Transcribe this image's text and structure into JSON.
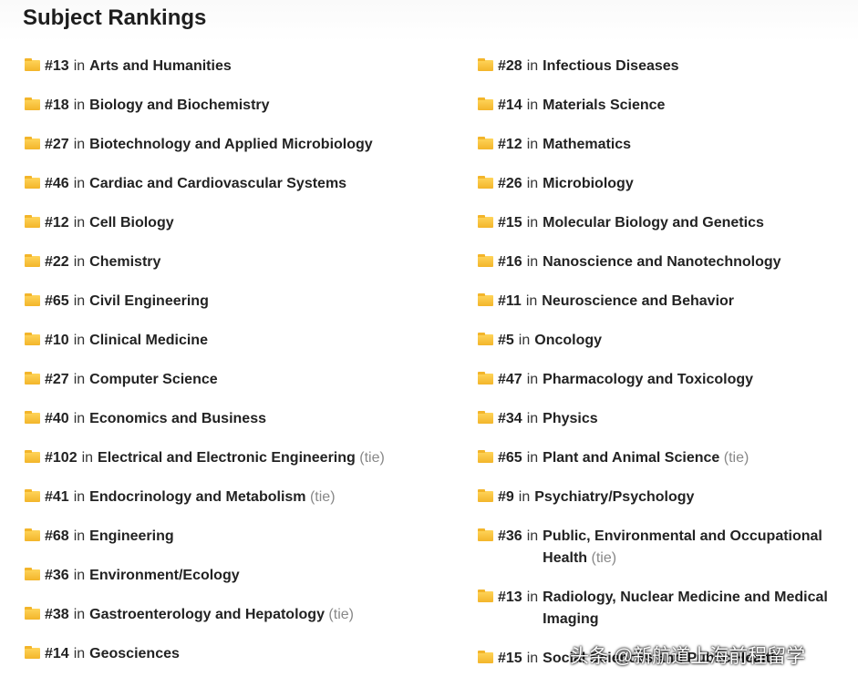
{
  "header": {
    "title": "Subject Rankings"
  },
  "columns": [
    {
      "items": [
        {
          "rank": "#13",
          "in": "in",
          "subject": "Arts and Humanities"
        },
        {
          "rank": "#18",
          "in": "in",
          "subject": "Biology and Biochemistry"
        },
        {
          "rank": "#27",
          "in": "in",
          "subject": "Biotechnology and Applied Microbiology"
        },
        {
          "rank": "#46",
          "in": "in",
          "subject": "Cardiac and Cardiovascular Systems"
        },
        {
          "rank": "#12",
          "in": "in",
          "subject": "Cell Biology"
        },
        {
          "rank": "#22",
          "in": "in",
          "subject": "Chemistry"
        },
        {
          "rank": "#65",
          "in": "in",
          "subject": "Civil Engineering"
        },
        {
          "rank": "#10",
          "in": "in",
          "subject": "Clinical Medicine"
        },
        {
          "rank": "#27",
          "in": "in",
          "subject": "Computer Science"
        },
        {
          "rank": "#40",
          "in": "in",
          "subject": "Economics and Business"
        },
        {
          "rank": "#102",
          "in": "in",
          "subject": "Electrical and Electronic Engineering",
          "tie": "(tie)"
        },
        {
          "rank": "#41",
          "in": "in",
          "subject": "Endocrinology and Metabolism",
          "tie": "(tie)"
        },
        {
          "rank": "#68",
          "in": "in",
          "subject": "Engineering"
        },
        {
          "rank": "#36",
          "in": "in",
          "subject": "Environment/Ecology"
        },
        {
          "rank": "#38",
          "in": "in",
          "subject": "Gastroenterology and Hepatology",
          "tie": "(tie)"
        },
        {
          "rank": "#14",
          "in": "in",
          "subject": "Geosciences"
        }
      ]
    },
    {
      "items": [
        {
          "rank": "#28",
          "in": "in",
          "subject": "Infectious Diseases"
        },
        {
          "rank": "#14",
          "in": "in",
          "subject": "Materials Science"
        },
        {
          "rank": "#12",
          "in": "in",
          "subject": "Mathematics"
        },
        {
          "rank": "#26",
          "in": "in",
          "subject": "Microbiology"
        },
        {
          "rank": "#15",
          "in": "in",
          "subject": "Molecular Biology and Genetics"
        },
        {
          "rank": "#16",
          "in": "in",
          "subject": "Nanoscience and Nanotechnology"
        },
        {
          "rank": "#11",
          "in": "in",
          "subject": "Neuroscience and Behavior"
        },
        {
          "rank": "#5",
          "in": "in",
          "subject": "Oncology"
        },
        {
          "rank": "#47",
          "in": "in",
          "subject": "Pharmacology and Toxicology"
        },
        {
          "rank": "#34",
          "in": "in",
          "subject": "Physics"
        },
        {
          "rank": "#65",
          "in": "in",
          "subject": "Plant and Animal Science",
          "tie": "(tie)"
        },
        {
          "rank": "#9",
          "in": "in",
          "subject": "Psychiatry/Psychology"
        },
        {
          "rank": "#36",
          "in": "in",
          "subject": "Public, Environmental and Occupational Health",
          "tie": "(tie)"
        },
        {
          "rank": "#13",
          "in": "in",
          "subject": "Radiology, Nuclear Medicine and Medical Imaging"
        },
        {
          "rank": "#15",
          "in": "in",
          "subject": "Social Sciences and Public Health"
        }
      ]
    }
  ],
  "watermark": "头条 @新航道上海前程留学"
}
